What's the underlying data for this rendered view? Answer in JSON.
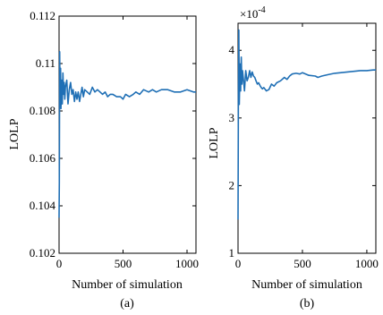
{
  "chart_data": [
    {
      "type": "line",
      "panel_label": "(a)",
      "xlabel": "Number of simulation",
      "ylabel": "LOLP",
      "xlim": [
        0,
        1070
      ],
      "ylim": [
        0.102,
        0.112
      ],
      "x_ticks": [
        0,
        500,
        1000
      ],
      "y_ticks": [
        0.102,
        0.104,
        0.106,
        0.108,
        0.11,
        0.112
      ],
      "y_tick_labels": [
        "0.102",
        "0.104",
        "0.106",
        "0.108",
        "0.11",
        "0.112"
      ],
      "exponent_label": "",
      "grid": false,
      "series": [
        {
          "x": [
            0,
            2,
            5,
            8,
            12,
            15,
            20,
            25,
            30,
            35,
            40,
            45,
            50,
            60,
            70,
            80,
            90,
            100,
            110,
            120,
            130,
            140,
            150,
            160,
            170,
            180,
            190,
            200,
            220,
            240,
            260,
            280,
            300,
            320,
            340,
            360,
            380,
            400,
            420,
            450,
            480,
            500,
            520,
            550,
            580,
            600,
            630,
            660,
            700,
            730,
            760,
            800,
            850,
            900,
            950,
            1000,
            1050,
            1070
          ],
          "y": [
            0.1035,
            0.105,
            0.1105,
            0.1085,
            0.1098,
            0.1081,
            0.1093,
            0.1083,
            0.1096,
            0.1087,
            0.1092,
            0.1085,
            0.109,
            0.1093,
            0.1083,
            0.1089,
            0.1092,
            0.1087,
            0.1089,
            0.1084,
            0.1088,
            0.1085,
            0.1088,
            0.1084,
            0.1087,
            0.109,
            0.1086,
            0.1089,
            0.1088,
            0.1087,
            0.109,
            0.1088,
            0.1089,
            0.1088,
            0.1087,
            0.1088,
            0.1086,
            0.1087,
            0.1087,
            0.1086,
            0.1086,
            0.1085,
            0.1087,
            0.1086,
            0.1087,
            0.1088,
            0.1087,
            0.1089,
            0.1088,
            0.1089,
            0.1088,
            0.1089,
            0.1089,
            0.1088,
            0.1088,
            0.1089,
            0.1088,
            0.1088
          ]
        }
      ]
    },
    {
      "type": "line",
      "panel_label": "(b)",
      "xlabel": "Number of simulation",
      "ylabel": "LOLP",
      "xlim": [
        0,
        1070
      ],
      "ylim": [
        1,
        4.4
      ],
      "x_ticks": [
        0,
        500,
        1000
      ],
      "y_ticks": [
        1,
        2,
        3,
        4
      ],
      "y_tick_labels": [
        "1",
        "2",
        "3",
        "4"
      ],
      "exponent_label": "×10",
      "exponent_power": "-4",
      "grid": false,
      "series": [
        {
          "x": [
            0,
            3,
            6,
            10,
            15,
            20,
            25,
            30,
            35,
            40,
            50,
            60,
            70,
            80,
            90,
            100,
            110,
            120,
            130,
            140,
            150,
            160,
            170,
            180,
            190,
            200,
            220,
            240,
            260,
            280,
            300,
            330,
            360,
            380,
            400,
            420,
            450,
            480,
            500,
            550,
            600,
            620,
            650,
            700,
            750,
            800,
            850,
            900,
            950,
            1000,
            1050,
            1070
          ],
          "y": [
            1.5,
            3.3,
            4.3,
            3.2,
            3.8,
            3.4,
            3.9,
            3.5,
            3.7,
            3.6,
            3.4,
            3.7,
            3.55,
            3.6,
            3.7,
            3.6,
            3.68,
            3.62,
            3.6,
            3.55,
            3.5,
            3.52,
            3.48,
            3.45,
            3.43,
            3.45,
            3.4,
            3.42,
            3.5,
            3.47,
            3.52,
            3.55,
            3.6,
            3.57,
            3.62,
            3.65,
            3.66,
            3.65,
            3.67,
            3.63,
            3.62,
            3.6,
            3.62,
            3.64,
            3.66,
            3.67,
            3.68,
            3.69,
            3.7,
            3.7,
            3.71,
            3.71
          ]
        }
      ]
    }
  ]
}
